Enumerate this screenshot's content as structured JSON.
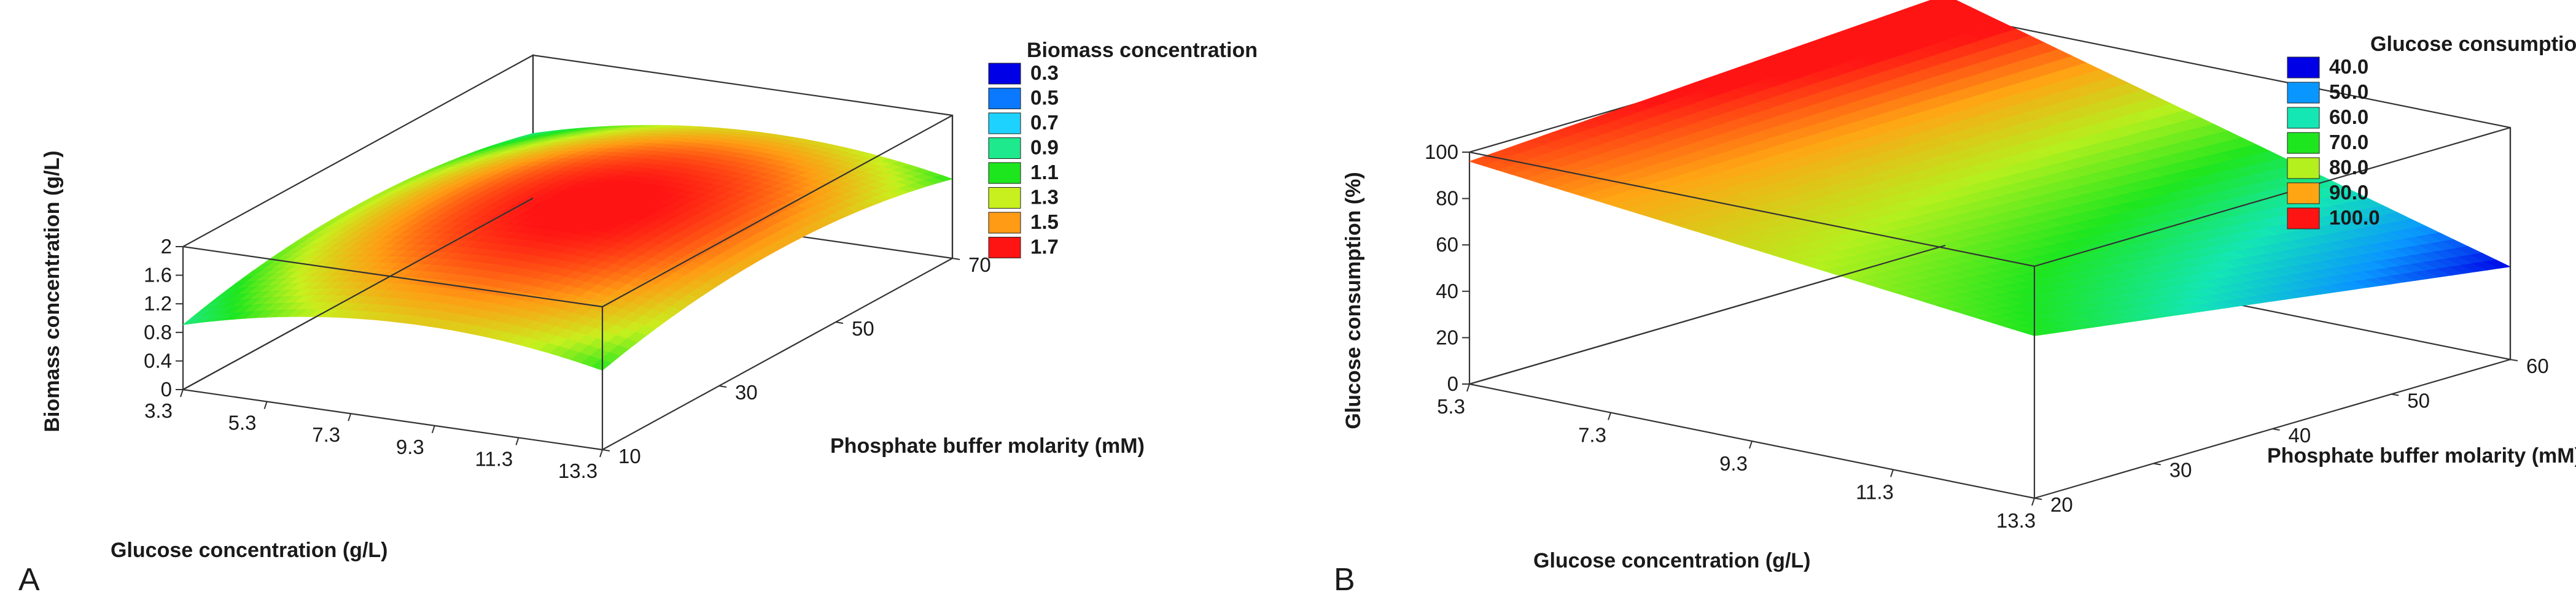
{
  "chart_data": [
    {
      "panel": "A",
      "type": "surface3d",
      "zlabel": "Biomass concentration (g/L)",
      "xlabel": "Glucose concentration (g/L)",
      "ylabel": "Phosphate buffer molarity (mM)",
      "x_ticks": [
        "3.3",
        "5.3",
        "7.3",
        "9.3",
        "11.3",
        "13.3"
      ],
      "y_ticks": [
        "10",
        "30",
        "50",
        "70"
      ],
      "z_ticks": [
        "0",
        "0.4",
        "0.8",
        "1.2",
        "1.6",
        "2"
      ],
      "xlim": [
        3.3,
        13.3
      ],
      "ylim": [
        10,
        70
      ],
      "zlim": [
        0,
        2
      ],
      "model": {
        "z0": 1.72,
        "xc": 9.0,
        "yc": 40,
        "ax": 0.0145,
        "ay": 0.00038,
        "axy": 0
      },
      "legend": {
        "title": "Biomass concentration",
        "values": [
          "0.3",
          "0.5",
          "0.7",
          "0.9",
          "1.1",
          "1.3",
          "1.5",
          "1.7"
        ],
        "colors": [
          "#0000e6",
          "#0a78ff",
          "#1ed2ff",
          "#1ee98c",
          "#1ee61e",
          "#c8f01e",
          "#ff9b14",
          "#ff1414"
        ]
      }
    },
    {
      "panel": "B",
      "type": "surface3d",
      "zlabel": "Glucose consumption (%)",
      "xlabel": "Glucose concentration (g/L)",
      "ylabel": "Phosphate buffer molarity (mM)",
      "x_ticks": [
        "5.3",
        "7.3",
        "9.3",
        "11.3",
        "13.3"
      ],
      "y_ticks": [
        "20",
        "30",
        "40",
        "50",
        "60"
      ],
      "z_ticks": [
        "0",
        "20",
        "40",
        "60",
        "80",
        "100"
      ],
      "xlim": [
        5.3,
        13.3
      ],
      "ylim": [
        20,
        60
      ],
      "zlim": [
        0,
        100
      ],
      "model": {
        "z_x0y0": 96,
        "z_x1y0": 70,
        "z_x0y1": 108,
        "z_x1y1": 40
      },
      "legend": {
        "title": "Glucose consumption",
        "values": [
          "40.0",
          "50.0",
          "60.0",
          "70.0",
          "80.0",
          "90.0",
          "100.0"
        ],
        "colors": [
          "#0000e6",
          "#0a96ff",
          "#14e6b4",
          "#1ee61e",
          "#b4f01e",
          "#ffa514",
          "#ff1414"
        ]
      }
    }
  ]
}
